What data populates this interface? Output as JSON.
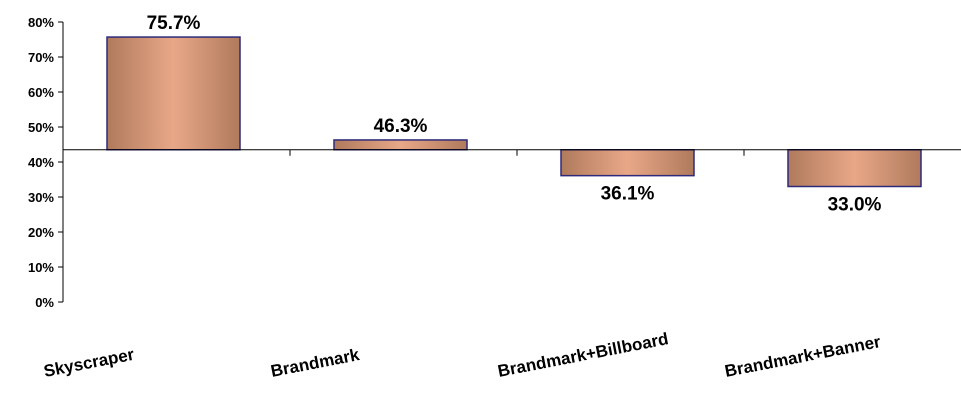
{
  "chart_data": {
    "type": "bar",
    "categories": [
      "Skyscraper",
      "Brandmark",
      "Brandmark+Billboard",
      "Brandmark+Banner"
    ],
    "values": [
      75.7,
      46.3,
      36.1,
      33.0
    ],
    "data_labels": [
      "75.7%",
      "46.3%",
      "36.1%",
      "33.0%"
    ],
    "baseline": 43.5,
    "ylim": [
      0,
      80
    ],
    "yticks": [
      0,
      10,
      20,
      30,
      40,
      50,
      60,
      70,
      80
    ],
    "ytick_labels": [
      "0%",
      "10%",
      "20%",
      "30%",
      "40%",
      "50%",
      "60%",
      "70%",
      "80%"
    ],
    "grid": false,
    "legend": "none",
    "bar_color_edge": "#b07a5c",
    "bar_color_center": "#e8a888",
    "bar_outline": "#2e2a7a"
  }
}
